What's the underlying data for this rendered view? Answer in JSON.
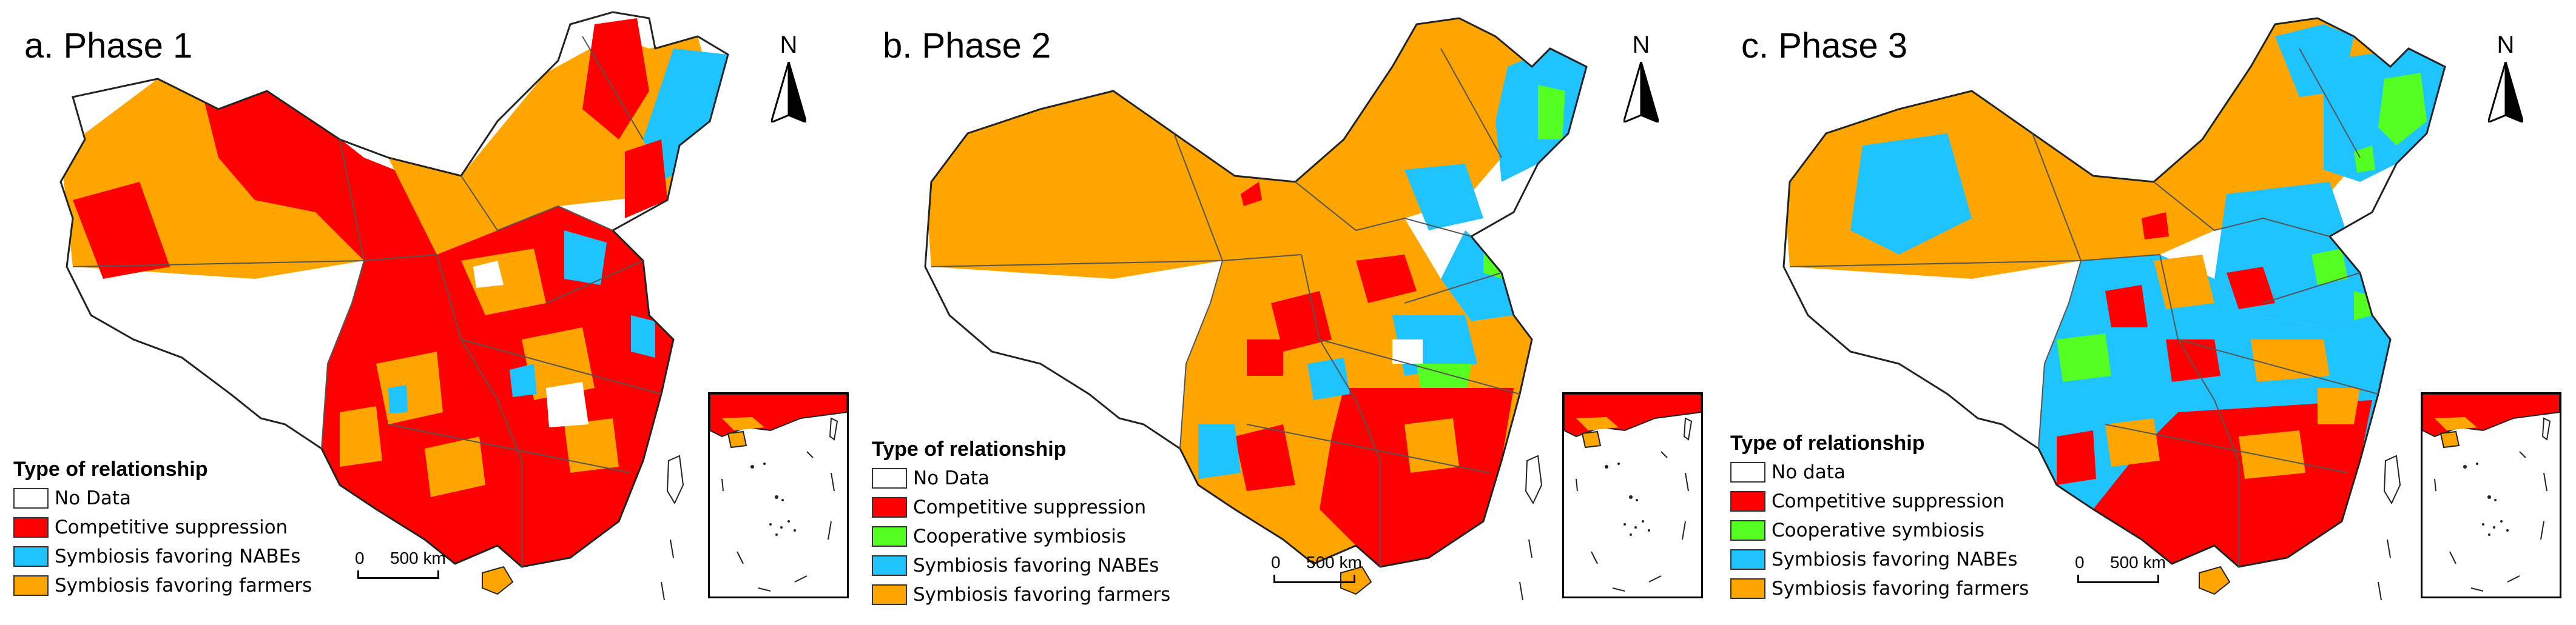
{
  "colors": {
    "no_data": "#ffffff",
    "competitive": "#ff0000",
    "cooperative": "#55ff22",
    "nabes": "#1ec3ff",
    "farmers": "#ffa500",
    "border": "#555555"
  },
  "north_label": "N",
  "legend_title": "Type of relationship",
  "scale": {
    "zero": "0",
    "distance": "500 km"
  },
  "panels": [
    {
      "title": "a. Phase 1",
      "legend": [
        {
          "label": "No Data",
          "color": "#ffffff"
        },
        {
          "label": "Competitive suppression",
          "color": "#ff0000"
        },
        {
          "label": "Symbiosis favoring NABEs",
          "color": "#1ec3ff"
        },
        {
          "label": "Symbiosis favoring farmers",
          "color": "#ffa500"
        }
      ]
    },
    {
      "title": "b. Phase 2",
      "legend": [
        {
          "label": "No Data",
          "color": "#ffffff"
        },
        {
          "label": "Competitive suppression",
          "color": "#ff0000"
        },
        {
          "label": "Cooperative symbiosis",
          "color": "#55ff22"
        },
        {
          "label": "Symbiosis favoring NABEs",
          "color": "#1ec3ff"
        },
        {
          "label": "Symbiosis favoring farmers",
          "color": "#ffa500"
        }
      ]
    },
    {
      "title": "c. Phase 3",
      "legend": [
        {
          "label": "No data",
          "color": "#ffffff"
        },
        {
          "label": "Competitive suppression",
          "color": "#ff0000"
        },
        {
          "label": "Cooperative symbiosis",
          "color": "#55ff22"
        },
        {
          "label": "Symbiosis favoring NABEs",
          "color": "#1ec3ff"
        },
        {
          "label": "Symbiosis favoring farmers",
          "color": "#ffa500"
        }
      ]
    }
  ]
}
